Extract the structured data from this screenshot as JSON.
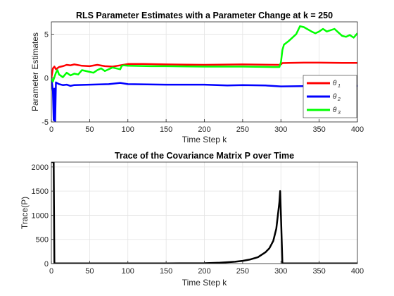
{
  "figure": {
    "background": "#ffffff"
  },
  "chart_data": [
    {
      "type": "line",
      "title": "RLS Parameter Estimates with a Parameter Change at k = 250",
      "xlabel": "Time Step k",
      "ylabel": "Parameter Estimates",
      "xlim": [
        0,
        400
      ],
      "ylim": [
        -5,
        6.4
      ],
      "xticks": [
        "0",
        "50",
        "100",
        "150",
        "200",
        "250",
        "300",
        "350",
        "400"
      ],
      "yticks": [
        "-5",
        "0",
        "5"
      ],
      "grid": true,
      "legend": {
        "position": "bottom-right",
        "entries": [
          {
            "symbol": "θ",
            "sub": "1"
          },
          {
            "symbol": "θ",
            "sub": "2"
          },
          {
            "symbol": "θ",
            "sub": "3"
          }
        ]
      },
      "series": [
        {
          "color": "#ff0000",
          "x": [
            0,
            2,
            4,
            6,
            10,
            15,
            20,
            25,
            30,
            40,
            50,
            60,
            70,
            80,
            90,
            100,
            120,
            150,
            200,
            250,
            298,
            300,
            302,
            310,
            330,
            350,
            380,
            400
          ],
          "y": [
            0,
            1.1,
            1.3,
            1.0,
            1.25,
            1.35,
            1.5,
            1.45,
            1.55,
            1.4,
            1.35,
            1.5,
            1.35,
            1.3,
            1.45,
            1.6,
            1.6,
            1.55,
            1.5,
            1.55,
            1.5,
            1.55,
            1.7,
            1.72,
            1.75,
            1.75,
            1.72,
            1.72
          ]
        },
        {
          "color": "#0000ff",
          "x": [
            0,
            2,
            3,
            4,
            5,
            6,
            8,
            10,
            15,
            20,
            25,
            30,
            50,
            75,
            90,
            100,
            150,
            200,
            230,
            250,
            280,
            300,
            350,
            400
          ],
          "y": [
            0,
            -1.5,
            -4.8,
            -1.2,
            -4.9,
            -0.5,
            -0.6,
            -0.7,
            -0.8,
            -0.75,
            -0.9,
            -0.8,
            -0.75,
            -0.7,
            -0.55,
            -0.7,
            -0.75,
            -0.75,
            -0.85,
            -0.8,
            -0.85,
            -0.95,
            -0.9,
            -0.9
          ]
        },
        {
          "color": "#00ff00",
          "x": [
            0,
            2,
            4,
            6,
            8,
            10,
            15,
            20,
            25,
            30,
            35,
            40,
            50,
            55,
            60,
            65,
            70,
            80,
            90,
            92,
            95,
            100,
            130,
            150,
            200,
            250,
            290,
            298,
            300,
            302,
            304,
            310,
            320,
            325,
            330,
            340,
            345,
            350,
            355,
            360,
            370,
            375,
            380,
            385,
            390,
            395,
            400
          ],
          "y": [
            0,
            -0.4,
            0.1,
            0.6,
            0.9,
            0.4,
            0.1,
            0.6,
            0.3,
            0.5,
            0.4,
            0.9,
            0.7,
            0.6,
            0.9,
            1.1,
            0.8,
            1.2,
            1.0,
            1.4,
            1.45,
            1.4,
            1.35,
            1.35,
            1.3,
            1.3,
            1.25,
            1.25,
            1.8,
            3.2,
            3.8,
            4.2,
            5.0,
            5.9,
            5.8,
            5.3,
            5.1,
            5.3,
            5.6,
            5.3,
            5.6,
            5.2,
            4.8,
            4.7,
            4.9,
            4.6,
            5.1
          ]
        }
      ]
    },
    {
      "type": "line",
      "title": "Trace of the Covariance Matrix P over Time",
      "xlabel": "Time Step k",
      "ylabel": "Trace(P)",
      "xlim": [
        0,
        400
      ],
      "ylim": [
        0,
        2100
      ],
      "xticks": [
        "0",
        "50",
        "100",
        "150",
        "200",
        "250",
        "300",
        "350",
        "400"
      ],
      "yticks": [
        "0",
        "500",
        "1000",
        "1500",
        "2000"
      ],
      "grid": true,
      "series": [
        {
          "color": "#000000",
          "x": [
            0,
            1,
            3,
            4,
            100,
            150,
            200,
            220,
            240,
            250,
            260,
            270,
            280,
            285,
            290,
            294,
            298,
            299,
            300,
            302,
            400
          ],
          "y": [
            2100,
            2100,
            2100,
            5,
            5,
            5,
            8,
            17,
            38,
            57,
            86,
            133,
            236,
            318,
            470,
            720,
            1270,
            1500,
            1000,
            5,
            5
          ]
        }
      ]
    }
  ]
}
